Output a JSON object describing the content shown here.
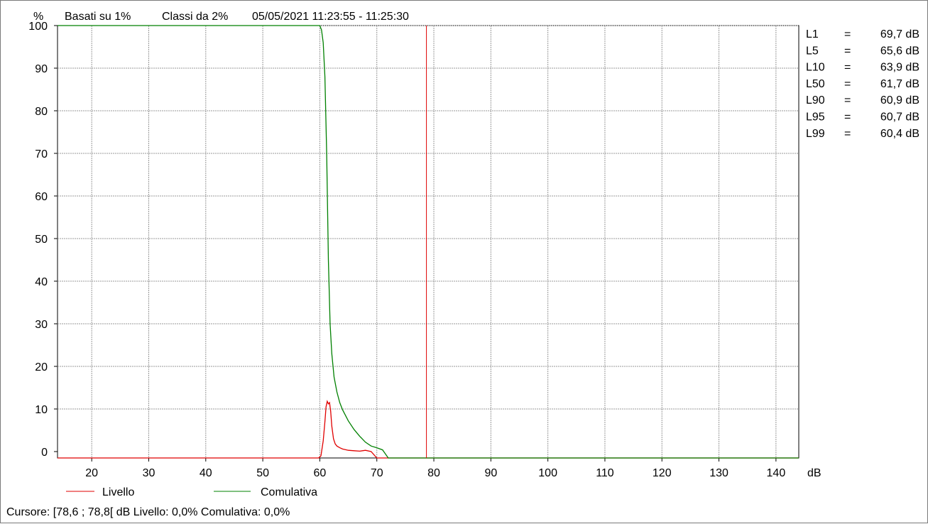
{
  "header": {
    "y_unit": "%",
    "basis": "Basati su 1%",
    "classes": "Classi da 2%",
    "datetime": "05/05/2021 11:23:55 - 11:25:30"
  },
  "stats": [
    {
      "label": "L1",
      "eq": "=",
      "value": "69,7 dB"
    },
    {
      "label": "L5",
      "eq": "=",
      "value": "65,6 dB"
    },
    {
      "label": "L10",
      "eq": "=",
      "value": "63,9 dB"
    },
    {
      "label": "L50",
      "eq": "=",
      "value": "61,7 dB"
    },
    {
      "label": "L90",
      "eq": "=",
      "value": "60,9 dB"
    },
    {
      "label": "L95",
      "eq": "=",
      "value": "60,7 dB"
    },
    {
      "label": "L99",
      "eq": "=",
      "value": "60,4 dB"
    }
  ],
  "cursor_text": "Cursore: [78,6 ; 78,8[ dB  Livello: 0,0%  Comulativa: 0,0%",
  "colors": {
    "livello": "#e00000",
    "comulativa": "#008000",
    "cursor": "#e00000",
    "grid": "#9a9a9a"
  },
  "chart_data": {
    "type": "line",
    "xlabel": "dB",
    "ylabel": "%",
    "xlim": [
      14,
      144
    ],
    "ylim": [
      -1.5,
      100
    ],
    "x_ticks": [
      20,
      30,
      40,
      50,
      60,
      70,
      80,
      90,
      100,
      110,
      120,
      130,
      140
    ],
    "y_ticks": [
      0,
      10,
      20,
      30,
      40,
      50,
      60,
      70,
      80,
      90,
      100
    ],
    "grid": true,
    "legend_position": "bottom-left",
    "cursor_x": 78.7,
    "series": [
      {
        "name": "Livello",
        "color": "#e00000",
        "x": [
          14,
          59.8,
          60.2,
          60.6,
          60.9,
          61.1,
          61.3,
          61.5,
          61.7,
          61.9,
          62.1,
          62.4,
          62.7,
          63.0,
          63.5,
          64.0,
          65.0,
          66.0,
          67.0,
          68.0,
          69.0,
          70.0,
          144
        ],
        "y": [
          -1.5,
          -1.5,
          -1.0,
          2.5,
          7.0,
          10.5,
          11.8,
          11.2,
          11.5,
          9.5,
          6.0,
          3.0,
          1.8,
          1.3,
          0.9,
          0.6,
          0.3,
          0.2,
          0.1,
          0.3,
          0.0,
          -1.5,
          -1.5
        ]
      },
      {
        "name": "Comulativa",
        "color": "#008000",
        "x": [
          14,
          60.0,
          60.3,
          60.6,
          60.9,
          61.2,
          61.5,
          61.8,
          62.1,
          62.5,
          63.0,
          63.5,
          64.0,
          65.0,
          66.0,
          67.0,
          68.0,
          69.0,
          70.0,
          71.0,
          72.0,
          144
        ],
        "y": [
          100,
          100,
          99.0,
          96.0,
          88.0,
          70.0,
          45.0,
          30.0,
          23.0,
          17.5,
          14.0,
          11.5,
          9.8,
          7.2,
          5.2,
          3.6,
          2.2,
          1.3,
          0.9,
          0.4,
          -1.5,
          -1.5
        ]
      }
    ]
  }
}
